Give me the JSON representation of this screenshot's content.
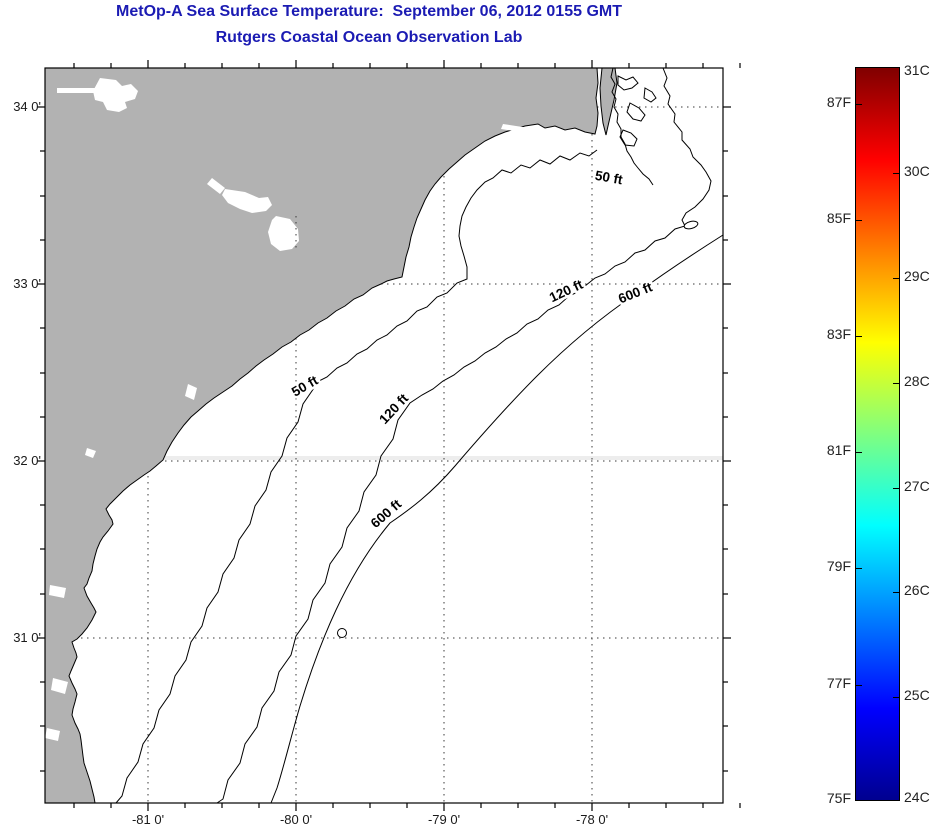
{
  "title": {
    "line1": "MetOp-A Sea Surface Temperature:  September 06, 2012 0155 GMT",
    "line2": "Rutgers Coastal Ocean Observation Lab"
  },
  "map": {
    "x_tick_labels": [
      "-81 0'",
      "-80 0'",
      "-79 0'",
      "-78 0'"
    ],
    "y_tick_labels": [
      "34 0'",
      "33 0'",
      "32 0'",
      "31 0'"
    ],
    "contour_labels": {
      "c50_a": "50 ft",
      "c50_b": "50 ft",
      "c120_a": "120 ft",
      "c120_b": "120 ft",
      "c600_a": "600 ft",
      "c600_b": "600 ft"
    }
  },
  "colorbar": {
    "f_labels": [
      "87F",
      "85F",
      "83F",
      "81F",
      "79F",
      "77F",
      "75F"
    ],
    "c_labels": [
      "31C",
      "30C",
      "29C",
      "28C",
      "27C",
      "26C",
      "25C",
      "24C"
    ],
    "scale": {
      "min_c": 24,
      "max_c": 31,
      "min_f": 75,
      "max_f": 87,
      "colormap": "jet"
    }
  },
  "colors": {
    "title": "#1b1bb3",
    "land": "#b2b2b2",
    "axis_text": "#1a1a1a"
  }
}
